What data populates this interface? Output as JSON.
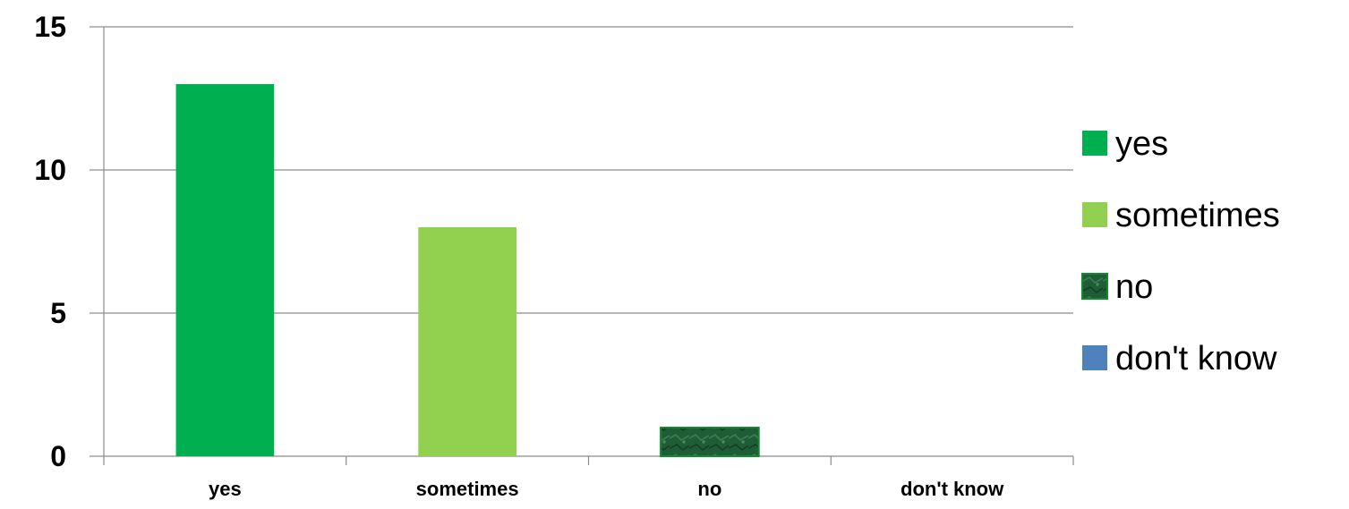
{
  "chart_data": {
    "type": "bar",
    "title": "",
    "xlabel": "",
    "ylabel": "",
    "categories": [
      "yes",
      "sometimes",
      "no",
      "don't know"
    ],
    "values": [
      13,
      8,
      1,
      0
    ],
    "ylim": [
      0,
      15
    ],
    "yticks": [
      0,
      5,
      10,
      15
    ],
    "grid": true,
    "legend": {
      "position": "right",
      "entries": [
        "yes",
        "sometimes",
        "no",
        "don't know"
      ]
    },
    "colors": [
      "#00b050",
      "#92d050",
      "#1e5c35",
      "#4f81bd"
    ]
  }
}
